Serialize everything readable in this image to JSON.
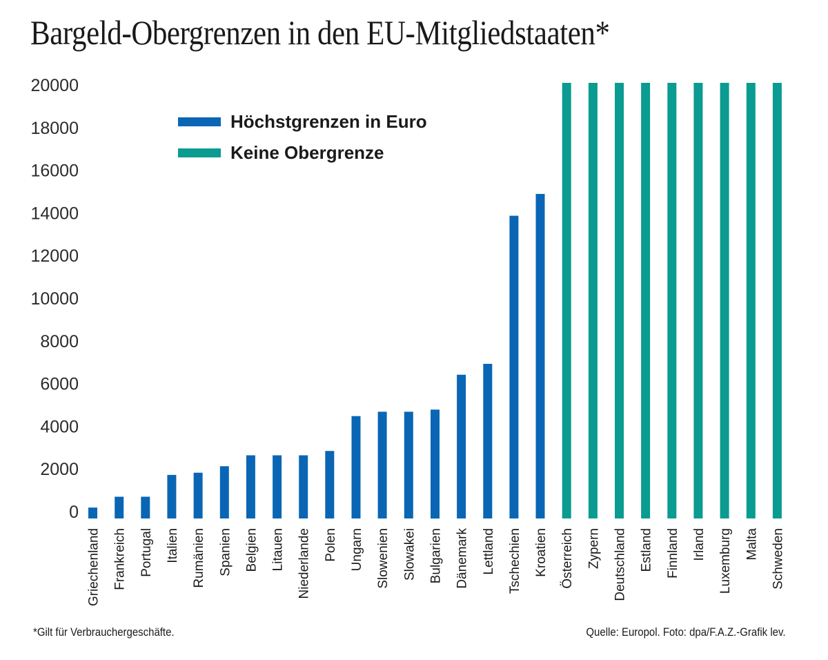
{
  "chart_data": {
    "type": "bar",
    "title": "Bargeld-Obergrenzen in den EU-Mitgliedstaaten*",
    "xlabel": "",
    "ylabel": "",
    "ylim": [
      0,
      20000
    ],
    "yticks": [
      0,
      2000,
      4000,
      6000,
      8000,
      10000,
      12000,
      14000,
      16000,
      18000,
      20000
    ],
    "grid": false,
    "legend_position": "top-left",
    "legend": [
      {
        "label": "Höchstgrenzen in Euro",
        "color": "#0a66b5"
      },
      {
        "label": "Keine Obergrenze",
        "color": "#0a9b91"
      }
    ],
    "categories": [
      "Griechenland",
      "Frankreich",
      "Portugal",
      "Italien",
      "Rumänien",
      "Spanien",
      "Belgien",
      "Litauen",
      "Niederlande",
      "Polen",
      "Ungarn",
      "Slowenien",
      "Slowakei",
      "Bulgarien",
      "Dänemark",
      "Lettland",
      "Tschechien",
      "Kroatien",
      "Österreich",
      "Zypern",
      "Deutschland",
      "Estland",
      "Finnland",
      "Irland",
      "Luxemburg",
      "Malta",
      "Schweden"
    ],
    "series": [
      {
        "name": "Höchstgrenzen in Euro",
        "color": "#0a66b5",
        "values": [
          500,
          1000,
          1000,
          2000,
          2100,
          2400,
          2900,
          2900,
          2900,
          3100,
          4700,
          4900,
          4900,
          5000,
          6600,
          7100,
          13900,
          14900,
          null,
          null,
          null,
          null,
          null,
          null,
          null,
          null,
          null
        ]
      },
      {
        "name": "Keine Obergrenze",
        "color": "#0a9b91",
        "values": [
          null,
          null,
          null,
          null,
          null,
          null,
          null,
          null,
          null,
          null,
          null,
          null,
          null,
          null,
          null,
          null,
          null,
          null,
          20000,
          20000,
          20000,
          20000,
          20000,
          20000,
          20000,
          20000,
          20000
        ]
      }
    ],
    "footnote": "*Gilt für Verbrauchergeschäfte.",
    "source": "Quelle: Europol. Foto: dpa/F.A.Z.-Grafik lev."
  }
}
